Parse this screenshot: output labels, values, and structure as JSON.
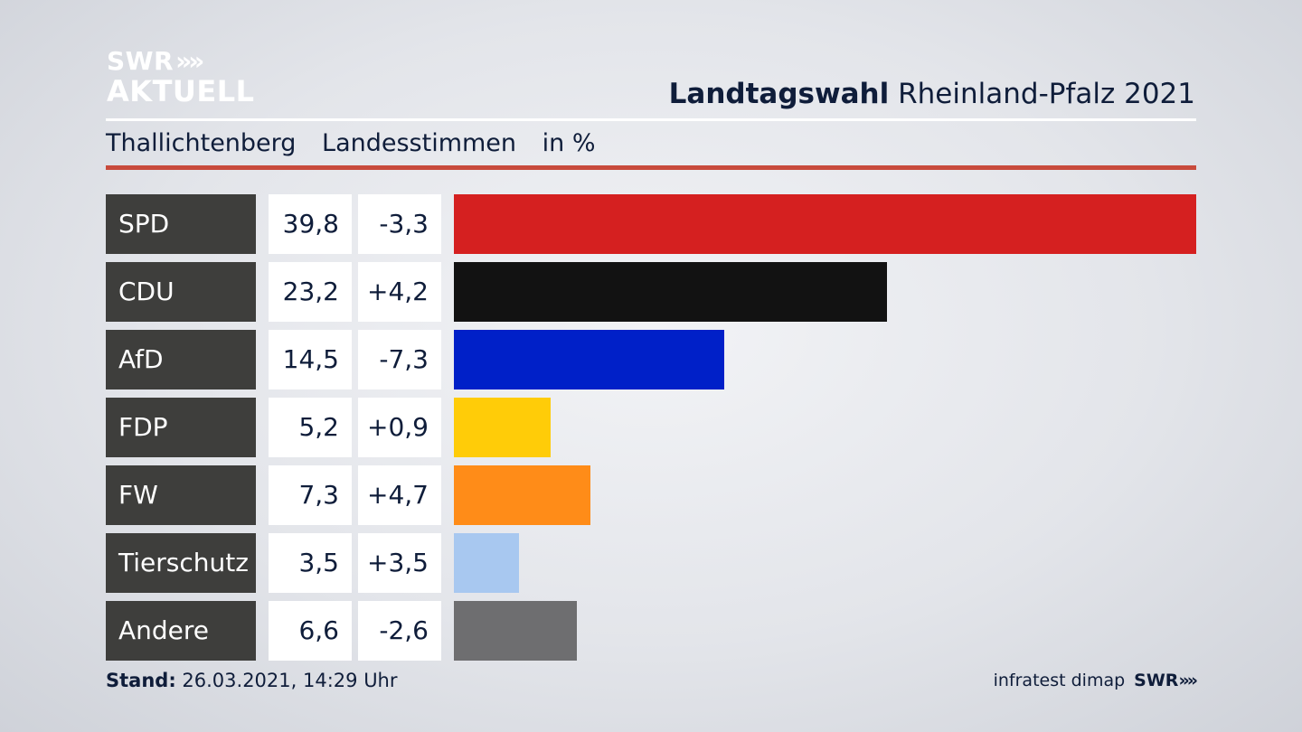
{
  "logo": {
    "line1": "SWR",
    "arrows": "»»",
    "line2": "AKTUELL"
  },
  "header": {
    "title_bold": "Landtagswahl",
    "title_rest": "Rheinland-Pfalz 2021"
  },
  "subheader": {
    "place": "Thallichtenberg",
    "type": "Landesstimmen",
    "unit": "in %"
  },
  "chart_data": {
    "type": "bar",
    "categories": [
      "SPD",
      "CDU",
      "AfD",
      "FDP",
      "FW",
      "Tierschutz",
      "Andere"
    ],
    "values": [
      39.8,
      23.2,
      14.5,
      5.2,
      7.3,
      3.5,
      6.6
    ],
    "value_labels": [
      "39,8",
      "23,2",
      "14,5",
      "5,2",
      "7,3",
      "3,5",
      "6,6"
    ],
    "change_labels": [
      "-3,3",
      "+4,2",
      "-7,3",
      "+0,9",
      "+4,7",
      "+3,5",
      "-2,6"
    ],
    "changes": [
      -3.3,
      4.2,
      -7.3,
      0.9,
      4.7,
      3.5,
      -2.6
    ],
    "colors": [
      "#d52020",
      "#121212",
      "#0020c8",
      "#ffcc08",
      "#ff8c18",
      "#a8c8f0",
      "#6e6e70"
    ],
    "orientation": "horizontal",
    "xlim": [
      0,
      39.8
    ]
  },
  "footer": {
    "stand_label": "Stand:",
    "stand_value": "26.03.2021, 14:29 Uhr",
    "source": "infratest dimap",
    "brand": "SWR",
    "brand_arrows": "»»"
  }
}
